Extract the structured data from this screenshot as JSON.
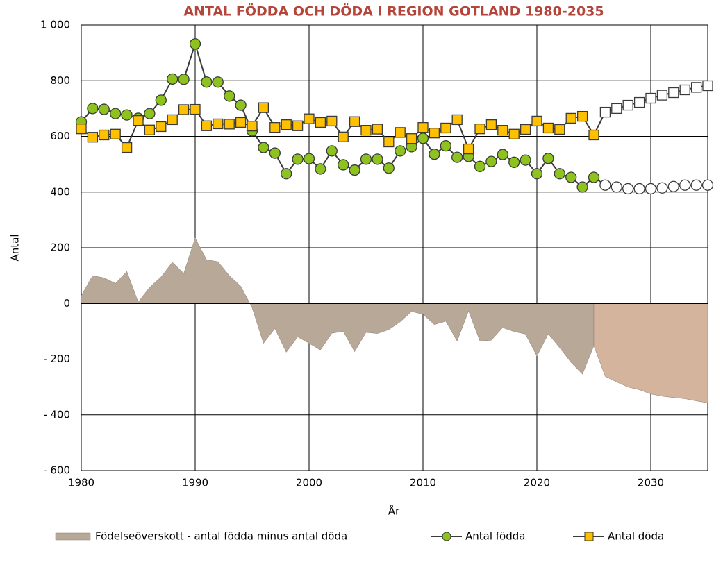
{
  "chart_data": {
    "type": "combo",
    "title": "ANTAL FÖDDA OCH DÖDA I REGION GOTLAND 1980-2035",
    "x_label": "År",
    "y_label": "Antal",
    "x": [
      1980,
      1981,
      1982,
      1983,
      1984,
      1985,
      1986,
      1987,
      1988,
      1989,
      1990,
      1991,
      1992,
      1993,
      1994,
      1995,
      1996,
      1997,
      1998,
      1999,
      2000,
      2001,
      2002,
      2003,
      2004,
      2005,
      2006,
      2007,
      2008,
      2009,
      2010,
      2011,
      2012,
      2013,
      2014,
      2015,
      2016,
      2017,
      2018,
      2019,
      2020,
      2021,
      2022,
      2023,
      2024,
      2025,
      2026,
      2027,
      2028,
      2029,
      2030,
      2031,
      2032,
      2033,
      2034,
      2035
    ],
    "forecast_from": 2026,
    "series": [
      {
        "name": "Födelseöverskott - antal födda minus antal döda",
        "type": "area",
        "color": "#b8a898",
        "forecast_color": "#d4b49c",
        "values": [
          28,
          100,
          92,
          72,
          115,
          5,
          58,
          95,
          148,
          108,
          235,
          157,
          150,
          100,
          62,
          -15,
          -143,
          -90,
          -175,
          -120,
          -143,
          -167,
          -107,
          -100,
          -173,
          -104,
          -108,
          -94,
          -66,
          -29,
          -39,
          -76,
          -64,
          -135,
          -27,
          -135,
          -132,
          -87,
          -101,
          -110,
          -189,
          -109,
          -159,
          -212,
          -254,
          -152,
          -262,
          -282,
          -300,
          -310,
          -325,
          -333,
          -338,
          -342,
          -350,
          -357
        ]
      },
      {
        "name": "Antal födda",
        "type": "line",
        "marker": "circle",
        "color": "#8dc21f",
        "forecast_color": "#ffffff",
        "values": [
          652,
          700,
          697,
          682,
          677,
          665,
          682,
          730,
          806,
          805,
          932,
          795,
          795,
          745,
          712,
          620,
          560,
          540,
          466,
          518,
          520,
          483,
          548,
          498,
          479,
          518,
          518,
          486,
          548,
          563,
          593,
          536,
          566,
          525,
          528,
          492,
          510,
          535,
          507,
          515,
          466,
          521,
          466,
          453,
          418,
          453,
          425,
          418,
          412,
          412,
          412,
          415,
          420,
          425,
          425,
          425
        ]
      },
      {
        "name": "Antal döda",
        "type": "line",
        "marker": "square",
        "color": "#ffc000",
        "forecast_color": "#ffffff",
        "values": [
          627,
          597,
          605,
          608,
          560,
          657,
          623,
          635,
          660,
          696,
          697,
          638,
          645,
          644,
          650,
          637,
          703,
          632,
          642,
          638,
          663,
          650,
          655,
          598,
          653,
          622,
          626,
          580,
          614,
          592,
          632,
          612,
          630,
          660,
          555,
          627,
          642,
          622,
          608,
          625,
          655,
          630,
          625,
          665,
          672,
          605,
          687,
          700,
          712,
          722,
          737,
          748,
          757,
          767,
          776,
          782
        ]
      }
    ],
    "xlim": [
      1980,
      2035
    ],
    "xticks": [
      1980,
      1990,
      2000,
      2010,
      2020,
      2030
    ],
    "ylim": [
      -600,
      1000
    ],
    "yticks": [
      {
        "value": -600,
        "label": "- 600"
      },
      {
        "value": -400,
        "label": "- 400"
      },
      {
        "value": -200,
        "label": "- 200"
      },
      0,
      200,
      400,
      600,
      800,
      {
        "value": 1000,
        "label": "1 000"
      }
    ],
    "grid": true,
    "legend": "bottom"
  }
}
